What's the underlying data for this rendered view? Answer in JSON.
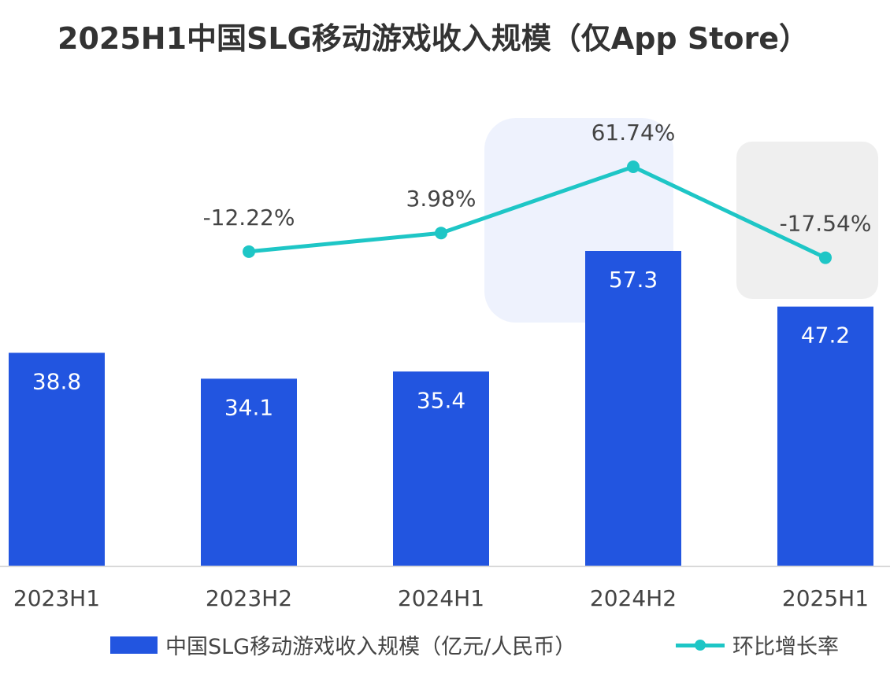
{
  "title": "2025H1中国SLG移动游戏收入规模（仅App Store）",
  "colors": {
    "bar": "#2255e0",
    "line": "#1ec6c6",
    "text": "#444444",
    "title": "#333333",
    "axis": "#d9d9d9"
  },
  "chart_data": {
    "type": "bar",
    "title": "2025H1中国SLG移动游戏收入规模（仅App Store）",
    "categories": [
      "2023H1",
      "2023H2",
      "2024H1",
      "2024H2",
      "2025H1"
    ],
    "series": [
      {
        "name": "中国SLG移动游戏收入规模（亿元/人民币）",
        "type": "bar",
        "values": [
          38.8,
          34.1,
          35.4,
          57.3,
          47.2
        ],
        "labels": [
          "38.8",
          "34.1",
          "35.4",
          "57.3",
          "47.2"
        ]
      },
      {
        "name": "环比增长率",
        "type": "line",
        "values": [
          null,
          -12.22,
          3.98,
          61.74,
          -17.54
        ],
        "labels": [
          "",
          "-12.22%",
          "3.98%",
          "61.74%",
          "-17.54%"
        ]
      }
    ],
    "legend_position": "bottom",
    "grid": false
  }
}
